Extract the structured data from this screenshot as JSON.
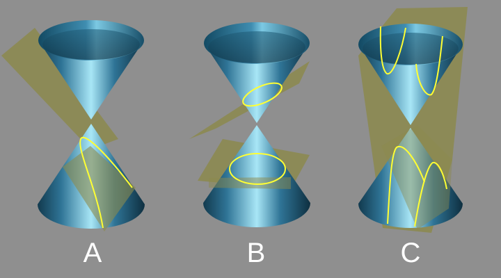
{
  "colors": {
    "background": "#8f8f8f",
    "cone_light": "#9fe3f5",
    "cone_mid": "#4a9fc0",
    "cone_dark": "#0f3447",
    "plane_fill": "#8c8a4d",
    "plane_edge": "#5f5d2e",
    "curve": "#ffff33",
    "label": "#ffffff"
  },
  "panels": [
    {
      "id": "a",
      "label": "A"
    },
    {
      "id": "b",
      "label": "B"
    },
    {
      "id": "c",
      "label": "C"
    }
  ]
}
